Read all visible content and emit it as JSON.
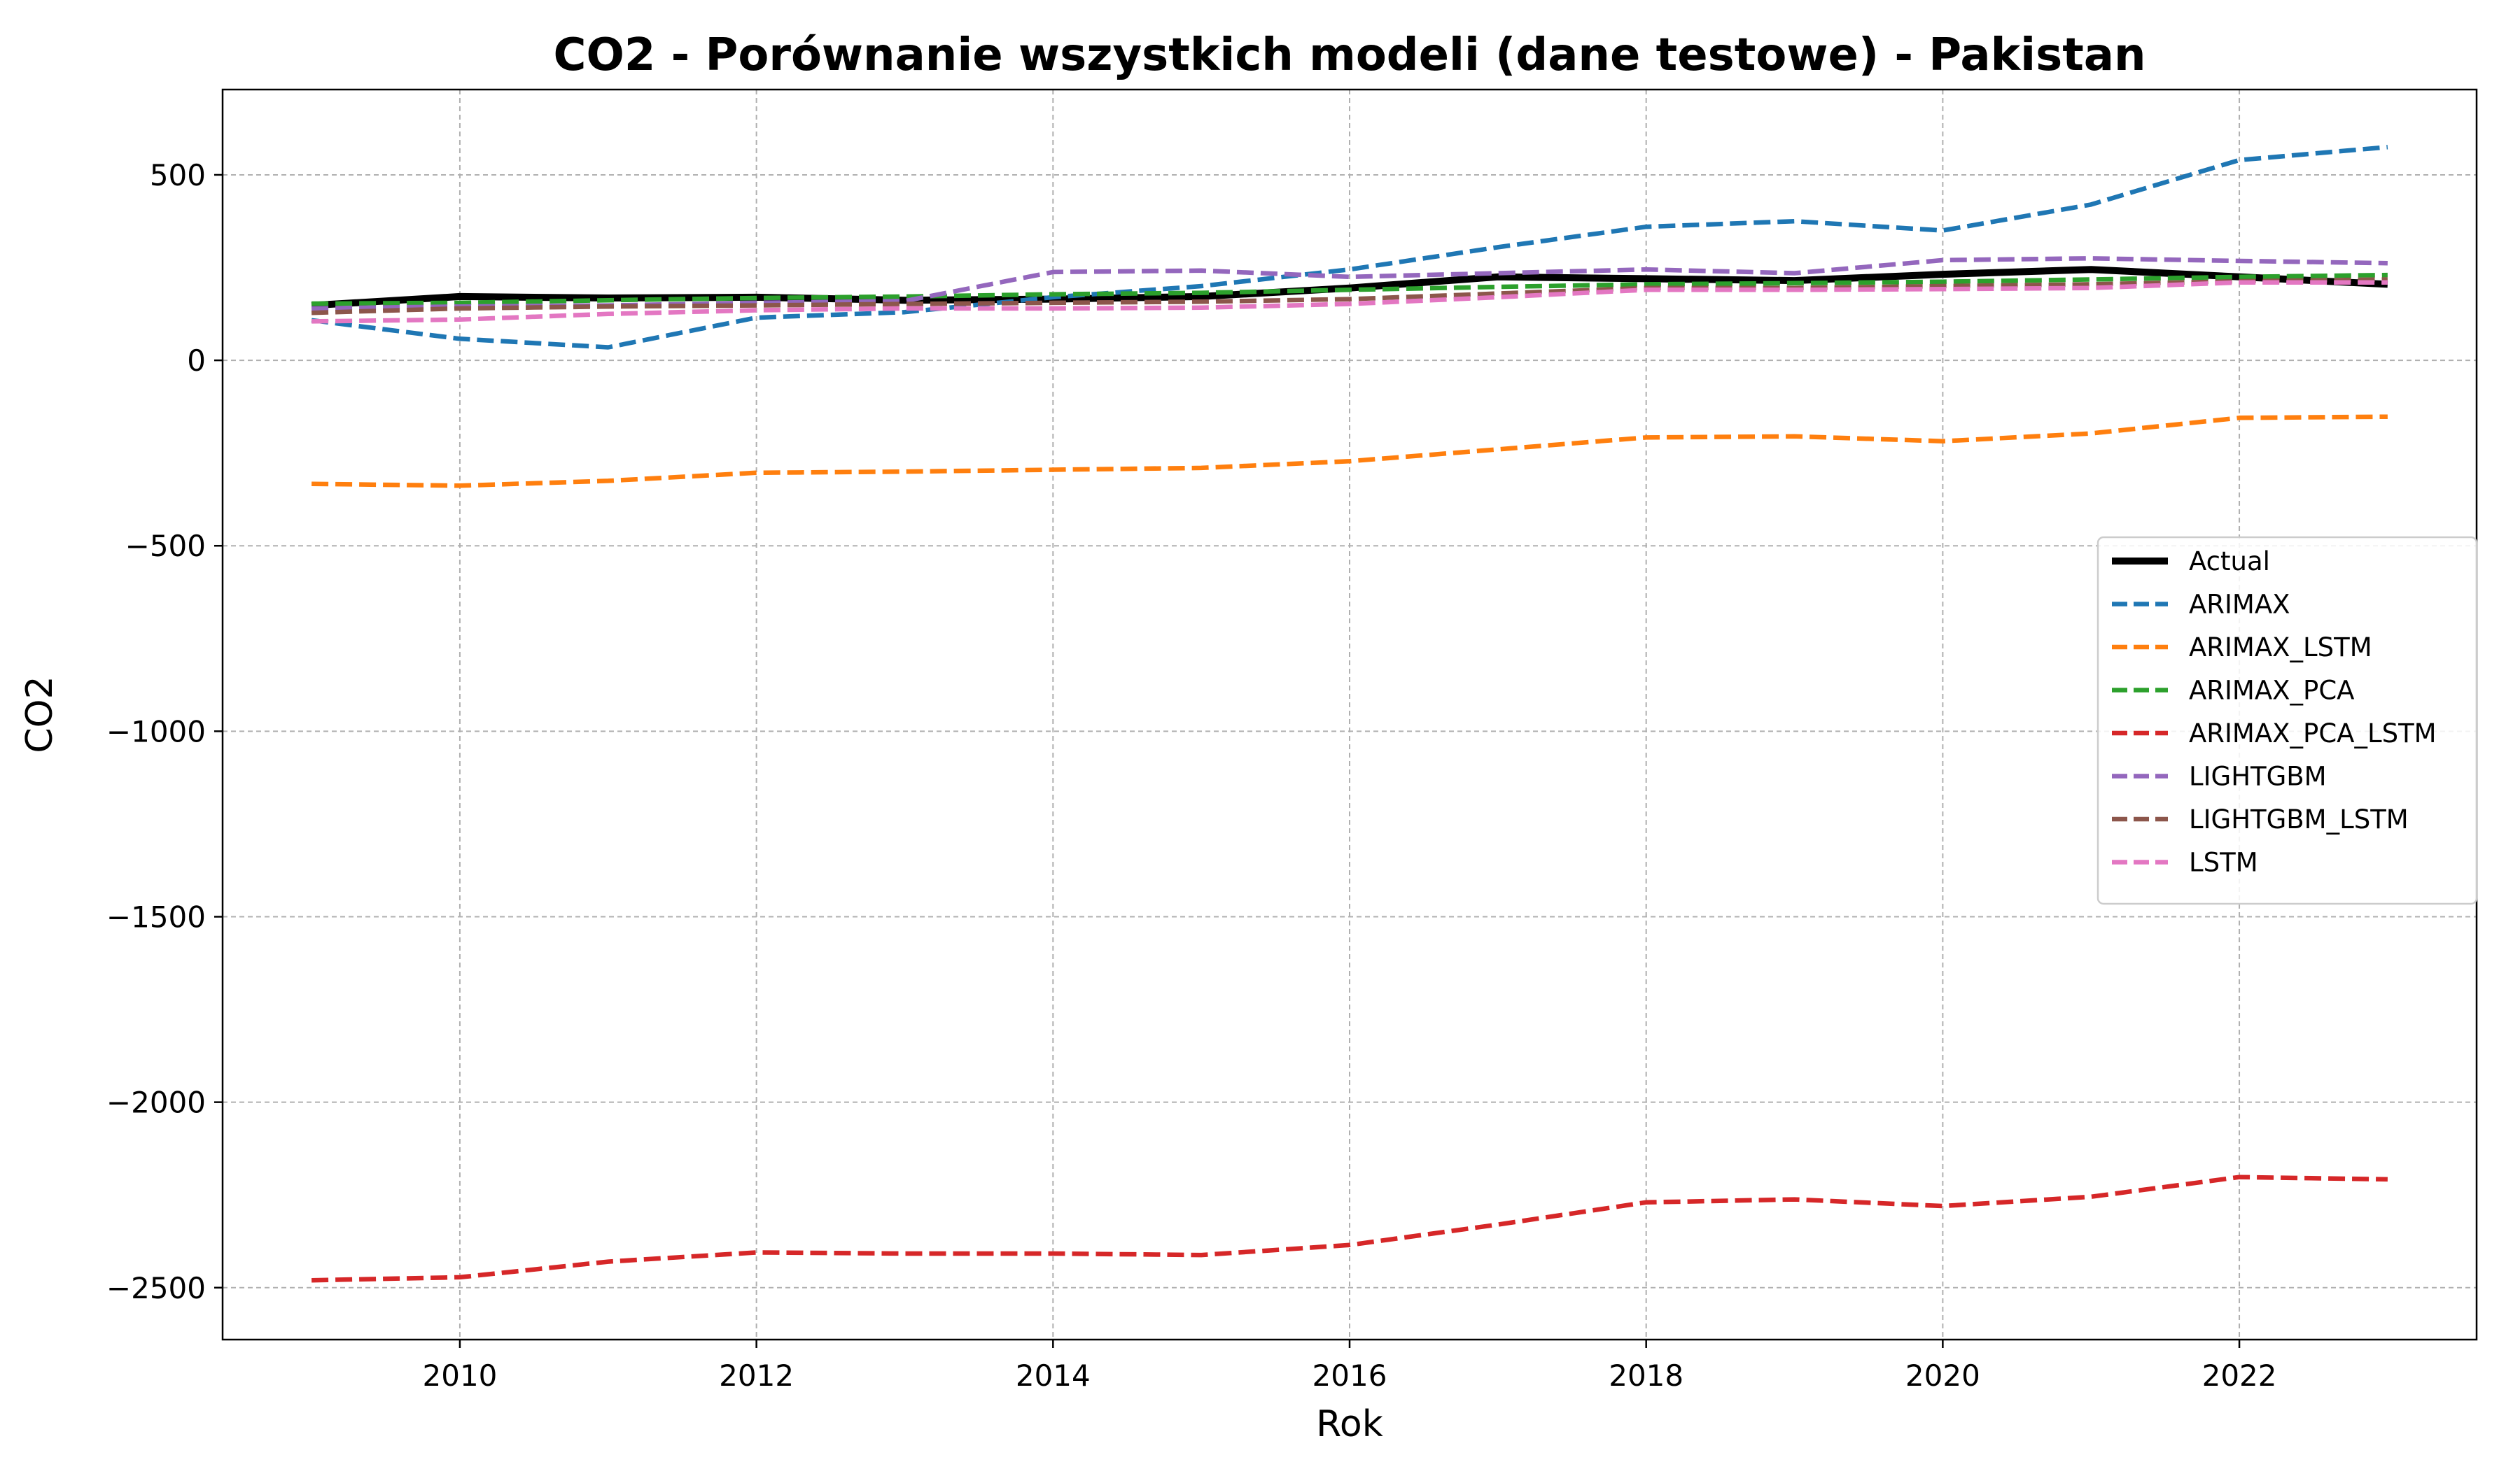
{
  "chart_data": {
    "type": "line",
    "title": "CO2 - Porównanie wszystkich modeli (dane testowe) - Pakistan",
    "xlabel": "Rok",
    "ylabel": "CO2",
    "xlim": [
      2008.4,
      2023.6
    ],
    "ylim": [
      -2640,
      730
    ],
    "x_ticks": [
      2010,
      2012,
      2014,
      2016,
      2018,
      2020,
      2022
    ],
    "y_ticks": [
      500,
      0,
      -500,
      -1000,
      -1500,
      -2000,
      -2500
    ],
    "y_tick_labels": [
      "500",
      "0",
      "−500",
      "−1000",
      "−1500",
      "−2000",
      "−2500"
    ],
    "grid": true,
    "legend_position": "center-right",
    "x": [
      2009,
      2010,
      2011,
      2012,
      2013,
      2014,
      2015,
      2016,
      2017,
      2018,
      2019,
      2020,
      2021,
      2022,
      2023
    ],
    "series": [
      {
        "name": "Actual",
        "color": "#000000",
        "style": "solid",
        "values": [
          148,
          172,
          168,
          170,
          162,
          165,
          172,
          195,
          225,
          220,
          215,
          232,
          245,
          225,
          205
        ]
      },
      {
        "name": "ARIMAX",
        "color": "#1f77b4",
        "style": "dashed",
        "values": [
          108,
          58,
          35,
          115,
          130,
          170,
          200,
          245,
          305,
          360,
          375,
          350,
          420,
          540,
          575
        ]
      },
      {
        "name": "ARIMAX_LSTM",
        "color": "#ff7f0e",
        "style": "dashed",
        "values": [
          -333,
          -338,
          -325,
          -303,
          -300,
          -295,
          -290,
          -272,
          -240,
          -208,
          -205,
          -218,
          -197,
          -155,
          -152
        ]
      },
      {
        "name": "ARIMAX_PCA",
        "color": "#2ca02c",
        "style": "dashed",
        "values": [
          153,
          155,
          162,
          168,
          172,
          178,
          182,
          190,
          198,
          205,
          208,
          212,
          218,
          225,
          230
        ]
      },
      {
        "name": "ARIMAX_PCA_LSTM",
        "color": "#d62728",
        "style": "dashed",
        "values": [
          -2480,
          -2472,
          -2430,
          -2405,
          -2408,
          -2408,
          -2412,
          -2385,
          -2330,
          -2270,
          -2262,
          -2280,
          -2255,
          -2202,
          -2208
        ]
      },
      {
        "name": "LIGHTGBM",
        "color": "#9467bd",
        "style": "dashed",
        "values": [
          140,
          145,
          148,
          155,
          160,
          238,
          242,
          225,
          235,
          245,
          235,
          270,
          275,
          268,
          262
        ]
      },
      {
        "name": "LIGHTGBM_LSTM",
        "color": "#8c564b",
        "style": "dashed",
        "values": [
          128,
          140,
          145,
          148,
          152,
          155,
          158,
          165,
          180,
          195,
          195,
          200,
          205,
          213,
          218
        ]
      },
      {
        "name": "LSTM",
        "color": "#e377c2",
        "style": "dashed",
        "values": [
          105,
          110,
          125,
          135,
          140,
          140,
          142,
          152,
          170,
          190,
          190,
          192,
          195,
          210,
          210
        ]
      }
    ]
  }
}
